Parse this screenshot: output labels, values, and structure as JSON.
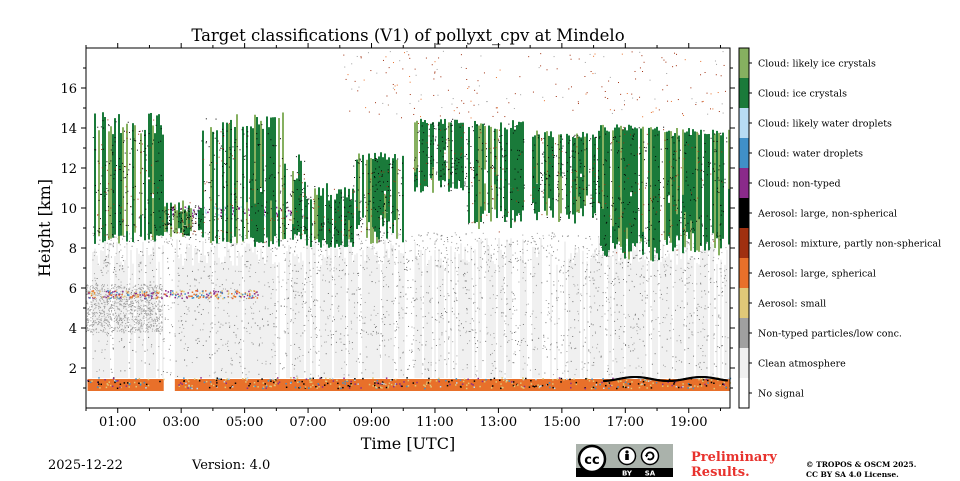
{
  "chart_data": {
    "type": "heatmap",
    "title": "Target classifications (V1) of pollyxt_cpv at Mindelo",
    "xlabel": "Time [UTC]",
    "ylabel": "Height [km]",
    "xlim_hours": [
      0.0,
      20.3
    ],
    "ylim_km": [
      0.0,
      18.0
    ],
    "x_ticks": [
      "01:00",
      "03:00",
      "05:00",
      "07:00",
      "09:00",
      "11:00",
      "13:00",
      "15:00",
      "17:00",
      "19:00"
    ],
    "x_tick_hours": [
      1,
      3,
      5,
      7,
      9,
      11,
      13,
      15,
      17,
      19
    ],
    "y_ticks": [
      "2",
      "4",
      "6",
      "8",
      "10",
      "12",
      "14",
      "16"
    ],
    "y_tick_values": [
      2,
      4,
      6,
      8,
      10,
      12,
      14,
      16
    ],
    "classes": [
      {
        "name": "No signal",
        "color": "#ffffff"
      },
      {
        "name": "Clean atmosphere",
        "color": "#f0f0f0"
      },
      {
        "name": "Non-typed particles/low conc.",
        "color": "#a0a0a0"
      },
      {
        "name": "Aerosol: small",
        "color": "#e0c878"
      },
      {
        "name": "Aerosol: large, spherical",
        "color": "#e8702a"
      },
      {
        "name": "Aerosol: mixture, partly non-spherical",
        "color": "#a03010"
      },
      {
        "name": "Aerosol: large, non-spherical",
        "color": "#000000"
      },
      {
        "name": "Cloud: non-typed",
        "color": "#8a2a8a"
      },
      {
        "name": "Cloud: water droplets",
        "color": "#4090c8"
      },
      {
        "name": "Cloud: likely water droplets",
        "color": "#b8dcf4"
      },
      {
        "name": "Cloud: ice crystals",
        "color": "#1a7a3a"
      },
      {
        "name": "Cloud: likely ice crystals",
        "color": "#86b060"
      }
    ],
    "layers": {
      "aerosol_layer_top_km": 1.5,
      "clean_atmosphere_top_km": 8.5,
      "ice_cloud_base_km": 8.0,
      "ice_cloud_top_km": 14.8
    }
  },
  "footer": {
    "date": "2025-12-22",
    "version": "Version: 4.0",
    "preliminary_line1": "Preliminary",
    "preliminary_line2": "Results.",
    "copyright_line1": "© TROPOS & OSCM 2025.",
    "copyright_line2": "CC BY SA 4.0 License.",
    "cc_text": "cc",
    "by_text": "BY",
    "sa_text": "SA"
  }
}
